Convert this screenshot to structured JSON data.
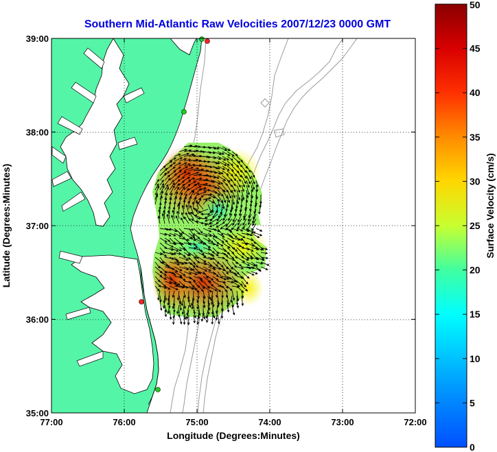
{
  "chart_data": {
    "type": "heatmap",
    "title": "Southern Mid-Atlantic Raw Velocities 2007/12/23 0000 GMT",
    "xlabel": "Longitude (Degrees:Minutes)",
    "ylabel": "Latitude (Degrees:Minutes)",
    "x_ticks": [
      {
        "value": -77,
        "label": "77:00"
      },
      {
        "value": -76,
        "label": "76:00"
      },
      {
        "value": -75,
        "label": "75:00"
      },
      {
        "value": -74,
        "label": "74:00"
      },
      {
        "value": -73,
        "label": "73:00"
      },
      {
        "value": -72,
        "label": "72:00"
      }
    ],
    "y_ticks": [
      {
        "value": 35,
        "label": "35:00"
      },
      {
        "value": 36,
        "label": "36:00"
      },
      {
        "value": 37,
        "label": "37:00"
      },
      {
        "value": 38,
        "label": "38:00"
      },
      {
        "value": 39,
        "label": "39:00"
      }
    ],
    "xlim": [
      -77,
      -72
    ],
    "ylim": [
      35,
      39
    ],
    "grid": true,
    "colorbar": {
      "label": "Surface Velocity (cm/s)",
      "range": [
        0,
        50
      ],
      "ticks": [
        0,
        5,
        10,
        15,
        20,
        25,
        30,
        35,
        40,
        45,
        50
      ],
      "colormap": "jet"
    },
    "land_color": "#55f5a8",
    "stations": [
      {
        "lon": -75.1,
        "lat": 38.97,
        "color": "#ff2020"
      },
      {
        "lon": -75.17,
        "lat": 38.99,
        "color": "#22cc22"
      },
      {
        "lon": -75.18,
        "lat": 38.21,
        "color": "#22cc22"
      },
      {
        "lon": -75.75,
        "lat": 36.19,
        "color": "#ff2020"
      },
      {
        "lon": -75.52,
        "lat": 35.25,
        "color": "#22cc22"
      }
    ]
  }
}
